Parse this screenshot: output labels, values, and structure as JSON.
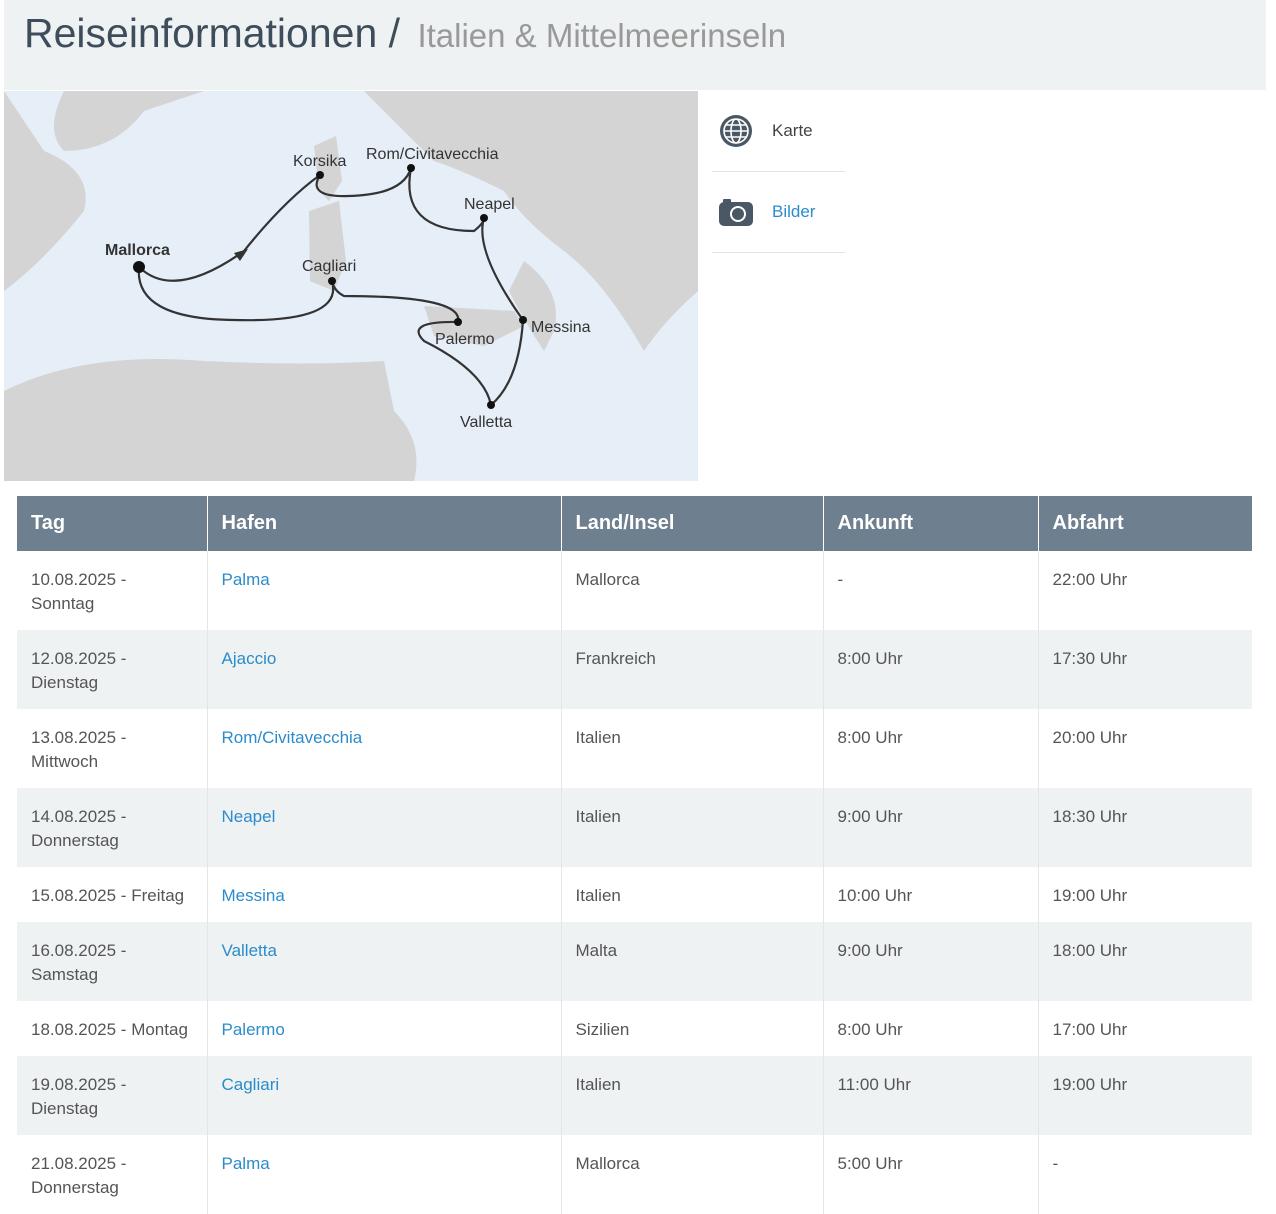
{
  "header": {
    "title": "Reiseinformationen /",
    "subtitle": "Italien & Mittelmeerinseln"
  },
  "map": {
    "labels": {
      "mallorca": "Mallorca",
      "korsika": "Korsika",
      "rom": "Rom/Civitavecchia",
      "neapel": "Neapel",
      "cagliari": "Cagliari",
      "messina": "Messina",
      "palermo": "Palermo",
      "valletta": "Valletta"
    },
    "colors": {
      "sea": "#e6eef8",
      "land": "#d4d4d4",
      "route": "#333333"
    }
  },
  "side": {
    "items": [
      {
        "label": "Karte",
        "icon": "globe-icon"
      },
      {
        "label": "Bilder",
        "icon": "camera-icon"
      }
    ]
  },
  "table": {
    "headers": [
      "Tag",
      "Hafen",
      "Land/Insel",
      "Ankunft",
      "Abfahrt"
    ],
    "rows": [
      {
        "tag": "10.08.2025 - Sonntag",
        "hafen": "Palma",
        "land": "Mallorca",
        "ankunft": "-",
        "abfahrt": "22:00 Uhr"
      },
      {
        "tag": "12.08.2025 - Dienstag",
        "hafen": "Ajaccio",
        "land": "Frankreich",
        "ankunft": "8:00 Uhr",
        "abfahrt": "17:30 Uhr"
      },
      {
        "tag": "13.08.2025 - Mittwoch",
        "hafen": "Rom/Civitavecchia",
        "land": "Italien",
        "ankunft": "8:00 Uhr",
        "abfahrt": "20:00 Uhr"
      },
      {
        "tag": "14.08.2025 - Donnerstag",
        "hafen": "Neapel",
        "land": "Italien",
        "ankunft": "9:00 Uhr",
        "abfahrt": "18:30 Uhr"
      },
      {
        "tag": "15.08.2025 - Freitag",
        "hafen": "Messina",
        "land": "Italien",
        "ankunft": "10:00 Uhr",
        "abfahrt": "19:00 Uhr"
      },
      {
        "tag": "16.08.2025 - Samstag",
        "hafen": "Valletta",
        "land": "Malta",
        "ankunft": "9:00 Uhr",
        "abfahrt": "18:00 Uhr"
      },
      {
        "tag": "18.08.2025 - Montag",
        "hafen": "Palermo",
        "land": "Sizilien",
        "ankunft": "8:00 Uhr",
        "abfahrt": "17:00 Uhr"
      },
      {
        "tag": "19.08.2025 - Dienstag",
        "hafen": "Cagliari",
        "land": "Italien",
        "ankunft": "11:00 Uhr",
        "abfahrt": "19:00 Uhr"
      },
      {
        "tag": "21.08.2025 - Donnerstag",
        "hafen": "Palma",
        "land": "Mallorca",
        "ankunft": "5:00 Uhr",
        "abfahrt": "-"
      }
    ]
  },
  "link_color": "#2b8ccc",
  "header_color": "#6e7f8f"
}
